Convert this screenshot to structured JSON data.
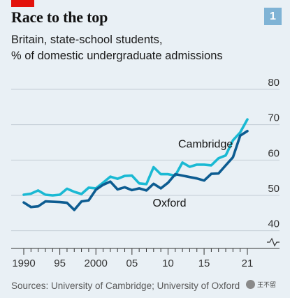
{
  "header": {
    "title": "Race to the top",
    "subtitle_lines": [
      "Britain, state-school students,",
      "% of domestic undergraduate admissions"
    ],
    "chart_number": "1",
    "brand_color": "#e3120b",
    "badge_color": "#7fb3d5"
  },
  "footer": {
    "source": "Sources: University of Cambridge; University of Oxford",
    "watermark": "王不留"
  },
  "chart_data": {
    "type": "line",
    "title": "Race to the top",
    "subtitle": "Britain, state-school students, % of domestic undergraduate admissions",
    "xlabel": "",
    "ylabel": "",
    "ylim": [
      35,
      80
    ],
    "y_axis_break": true,
    "y_ticks": [
      40,
      50,
      60,
      70,
      80
    ],
    "y_tick_labels": [
      "40",
      "50",
      "60",
      "70",
      "80"
    ],
    "x_ticks": [
      1990,
      1995,
      2000,
      2005,
      2010,
      2015,
      2021
    ],
    "x_tick_labels": [
      "1990",
      "95",
      "2000",
      "05",
      "10",
      "15",
      "21"
    ],
    "x_minor_ticks": [
      1990,
      1991,
      1992,
      1993,
      1994,
      1995,
      1996,
      1997,
      1998,
      1999,
      2000,
      2001,
      2002,
      2003,
      2004,
      2005,
      2006,
      2007,
      2008,
      2009,
      2010,
      2011,
      2012,
      2013,
      2014,
      2015,
      2016,
      2017,
      2018,
      2019,
      2020,
      2021
    ],
    "grid": true,
    "legend": "direct labels on lines",
    "series": [
      {
        "name": "Cambridge",
        "color": "#1ab9d3",
        "x": [
          1990,
          1991,
          1992,
          1993,
          1994,
          1995,
          1996,
          1997,
          1998,
          1999,
          2000,
          2001,
          2002,
          2003,
          2004,
          2005,
          2006,
          2007,
          2008,
          2009,
          2010,
          2011,
          2012,
          2013,
          2014,
          2015,
          2016,
          2017,
          2018,
          2019,
          2020,
          2021
        ],
        "values": [
          50.2,
          50.5,
          51.4,
          50.2,
          50.0,
          50.2,
          51.9,
          51.0,
          50.4,
          52.2,
          52.0,
          53.6,
          55.3,
          54.7,
          55.5,
          55.6,
          53.4,
          53.2,
          58.0,
          56.0,
          56.0,
          55.6,
          59.3,
          58.1,
          58.7,
          58.7,
          58.5,
          60.5,
          61.3,
          65.6,
          67.8,
          71.5
        ]
      },
      {
        "name": "Oxford",
        "color": "#0d5c91",
        "x": [
          1990,
          1991,
          1992,
          1993,
          1994,
          1995,
          1996,
          1997,
          1998,
          1999,
          2000,
          2001,
          2002,
          2003,
          2004,
          2005,
          2006,
          2007,
          2008,
          2009,
          2010,
          2011,
          2012,
          2013,
          2014,
          2015,
          2016,
          2017,
          2018,
          2019,
          2020,
          2021
        ],
        "values": [
          48.0,
          46.7,
          46.9,
          48.3,
          48.2,
          48.1,
          47.9,
          45.9,
          48.3,
          48.6,
          51.6,
          53.0,
          53.9,
          51.7,
          52.3,
          51.5,
          52.0,
          51.4,
          53.3,
          52.0,
          53.6,
          56.0,
          55.6,
          55.2,
          54.8,
          54.2,
          56.1,
          56.2,
          58.5,
          60.8,
          66.9,
          68.2
        ]
      }
    ],
    "annotations": [
      "Cambridge",
      "Oxford"
    ]
  }
}
